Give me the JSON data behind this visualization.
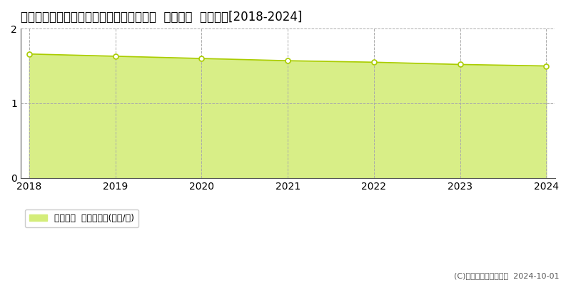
{
  "title": "徳島県那賀郡那賀町坂州字広瀬１２１番６  基準地価  地価推移[2018-2024]",
  "years": [
    2018,
    2019,
    2020,
    2021,
    2022,
    2023,
    2024
  ],
  "values": [
    1.66,
    1.63,
    1.6,
    1.57,
    1.55,
    1.52,
    1.5
  ],
  "ylim": [
    0,
    2
  ],
  "yticks": [
    0,
    1,
    2
  ],
  "line_color": "#aacc00",
  "fill_color": "#d4ed7a",
  "fill_alpha": 0.9,
  "marker_color": "white",
  "marker_edge_color": "#aacc00",
  "grid_color": "#aaaaaa",
  "bg_color": "#ffffff",
  "legend_label": "基準地価  平均坪単価(万円/坪)",
  "copyright_text": "(C)土地価格ドットコム  2024-10-01",
  "title_fontsize": 12,
  "axis_fontsize": 10,
  "legend_fontsize": 9,
  "copyright_fontsize": 8
}
